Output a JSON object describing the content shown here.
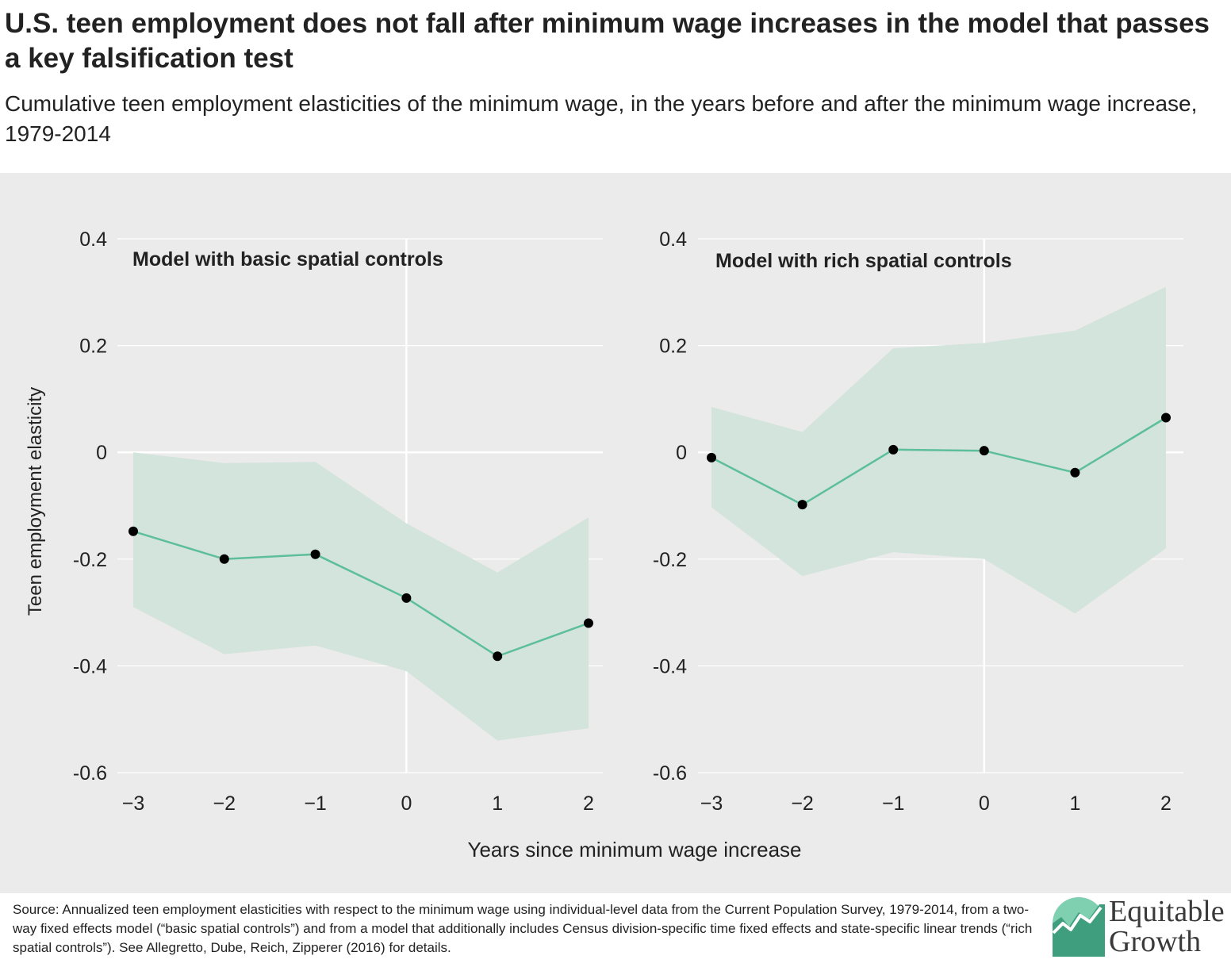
{
  "header": {
    "title": "U.S. teen employment does not fall after minimum wage increases in the model that passes a key falsification test",
    "subtitle": "Cumulative teen employment elasticities of the minimum wage, in the years before and after the minimum wage increase, 1979-2014"
  },
  "colors": {
    "background": "#ecebeb",
    "line": "#5dbf9a",
    "band": "#d3e4dc",
    "point": "#000000",
    "grid": "#ffffff"
  },
  "chart_data": [
    {
      "type": "line",
      "panel_title": "Model with basic spatial controls",
      "x": [
        -3,
        -2,
        -1,
        0,
        1,
        2
      ],
      "x_tick_labels": [
        "−3",
        "−2",
        "−1",
        "0",
        "1",
        "2"
      ],
      "y": [
        -0.148,
        -0.2,
        -0.191,
        -0.273,
        -0.382,
        -0.32
      ],
      "ci_upper": [
        0.0,
        -0.02,
        -0.018,
        -0.133,
        -0.225,
        -0.122
      ],
      "ci_lower": [
        -0.29,
        -0.378,
        -0.362,
        -0.41,
        -0.54,
        -0.517
      ],
      "ylim": [
        -0.6,
        0.4
      ],
      "y_ticks": [
        0.4,
        0.2,
        0,
        -0.2,
        -0.4,
        -0.6
      ],
      "y_tick_labels": [
        "0.4",
        "0.2",
        "0",
        "-0.2",
        "-0.4",
        "-0.6"
      ],
      "ylabel": "Teen employment elasticity",
      "grid": true
    },
    {
      "type": "line",
      "panel_title": "Model with rich spatial controls",
      "x": [
        -3,
        -2,
        -1,
        0,
        1,
        2
      ],
      "x_tick_labels": [
        "−3",
        "−2",
        "−1",
        "0",
        "1",
        "2"
      ],
      "y": [
        -0.01,
        -0.098,
        0.005,
        0.003,
        -0.038,
        0.065
      ],
      "ci_upper": [
        0.085,
        0.038,
        0.195,
        0.205,
        0.228,
        0.31
      ],
      "ci_lower": [
        -0.103,
        -0.232,
        -0.187,
        -0.2,
        -0.302,
        -0.18
      ],
      "ylim": [
        -0.6,
        0.4
      ],
      "y_ticks": [
        0.4,
        0.2,
        0,
        -0.2,
        -0.4,
        -0.6
      ],
      "y_tick_labels": [
        "0.4",
        "0.2",
        "0",
        "-0.2",
        "-0.4",
        "-0.6"
      ],
      "grid": true
    }
  ],
  "shared_xlabel": "Years since minimum wage increase",
  "footer": {
    "source": "Source: Annualized teen employment elasticities with respect to the minimum wage using individual-level data from the Current Population Survey, 1979-2014, from a two-way fixed effects model (“basic spatial controls”) and from a model that additionally includes Census division-specific time fixed effects and state-specific linear trends (“rich spatial controls”). See Allegretto, Dube, Reich, Zipperer (2016) for details."
  },
  "logo": {
    "line1": "Equitable",
    "line2": "Growth",
    "icon": "equitable-growth-logo-icon"
  }
}
